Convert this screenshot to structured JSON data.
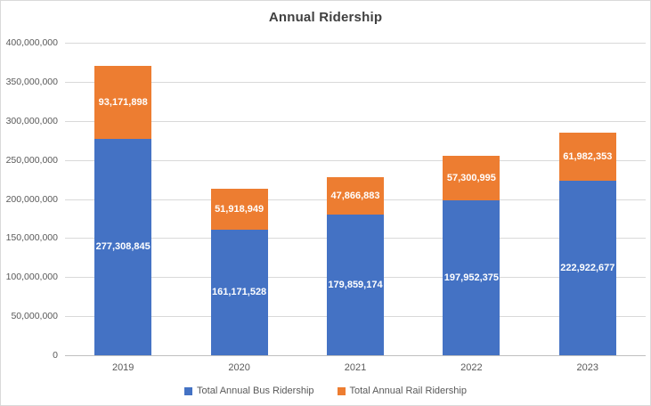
{
  "chart_data": {
    "type": "bar",
    "stacked": true,
    "title": "Annual Ridership",
    "xlabel": "",
    "ylabel": "",
    "categories": [
      "2019",
      "2020",
      "2021",
      "2022",
      "2023"
    ],
    "series": [
      {
        "name": "Total Annual Bus Ridership",
        "color": "#4472C4",
        "values": [
          277308845,
          161171528,
          179859174,
          197952375,
          222922677
        ],
        "labels": [
          "277,308,845",
          "161,171,528",
          "179,859,174",
          "197,952,375",
          "222,922,677"
        ]
      },
      {
        "name": "Total Annual Rail Ridership",
        "color": "#ED7D31",
        "values": [
          93171898,
          51918949,
          47866883,
          57300995,
          61982353
        ],
        "labels": [
          "93,171,898",
          "51,918,949",
          "47,866,883",
          "57,300,995",
          "61,982,353"
        ]
      }
    ],
    "ylim": [
      0,
      400000000
    ],
    "y_tick_step": 50000000,
    "y_tick_labels": [
      "0",
      "50,000,000",
      "100,000,000",
      "150,000,000",
      "200,000,000",
      "250,000,000",
      "300,000,000",
      "350,000,000",
      "400,000,000"
    ],
    "grid": true,
    "legend_position": "bottom",
    "data_labels": "inside-center"
  },
  "style": {
    "bar_color_bus": "#4472C4",
    "bar_color_rail": "#ED7D31",
    "title_color": "#404040",
    "axis_text_color": "#595959",
    "gridline_color": "#D9D9D9",
    "axis_line_color": "#BFBFBF",
    "bar_label_color": "#FFFFFF",
    "background_color": "#FFFFFF",
    "border_color": "#D9D9D9"
  }
}
